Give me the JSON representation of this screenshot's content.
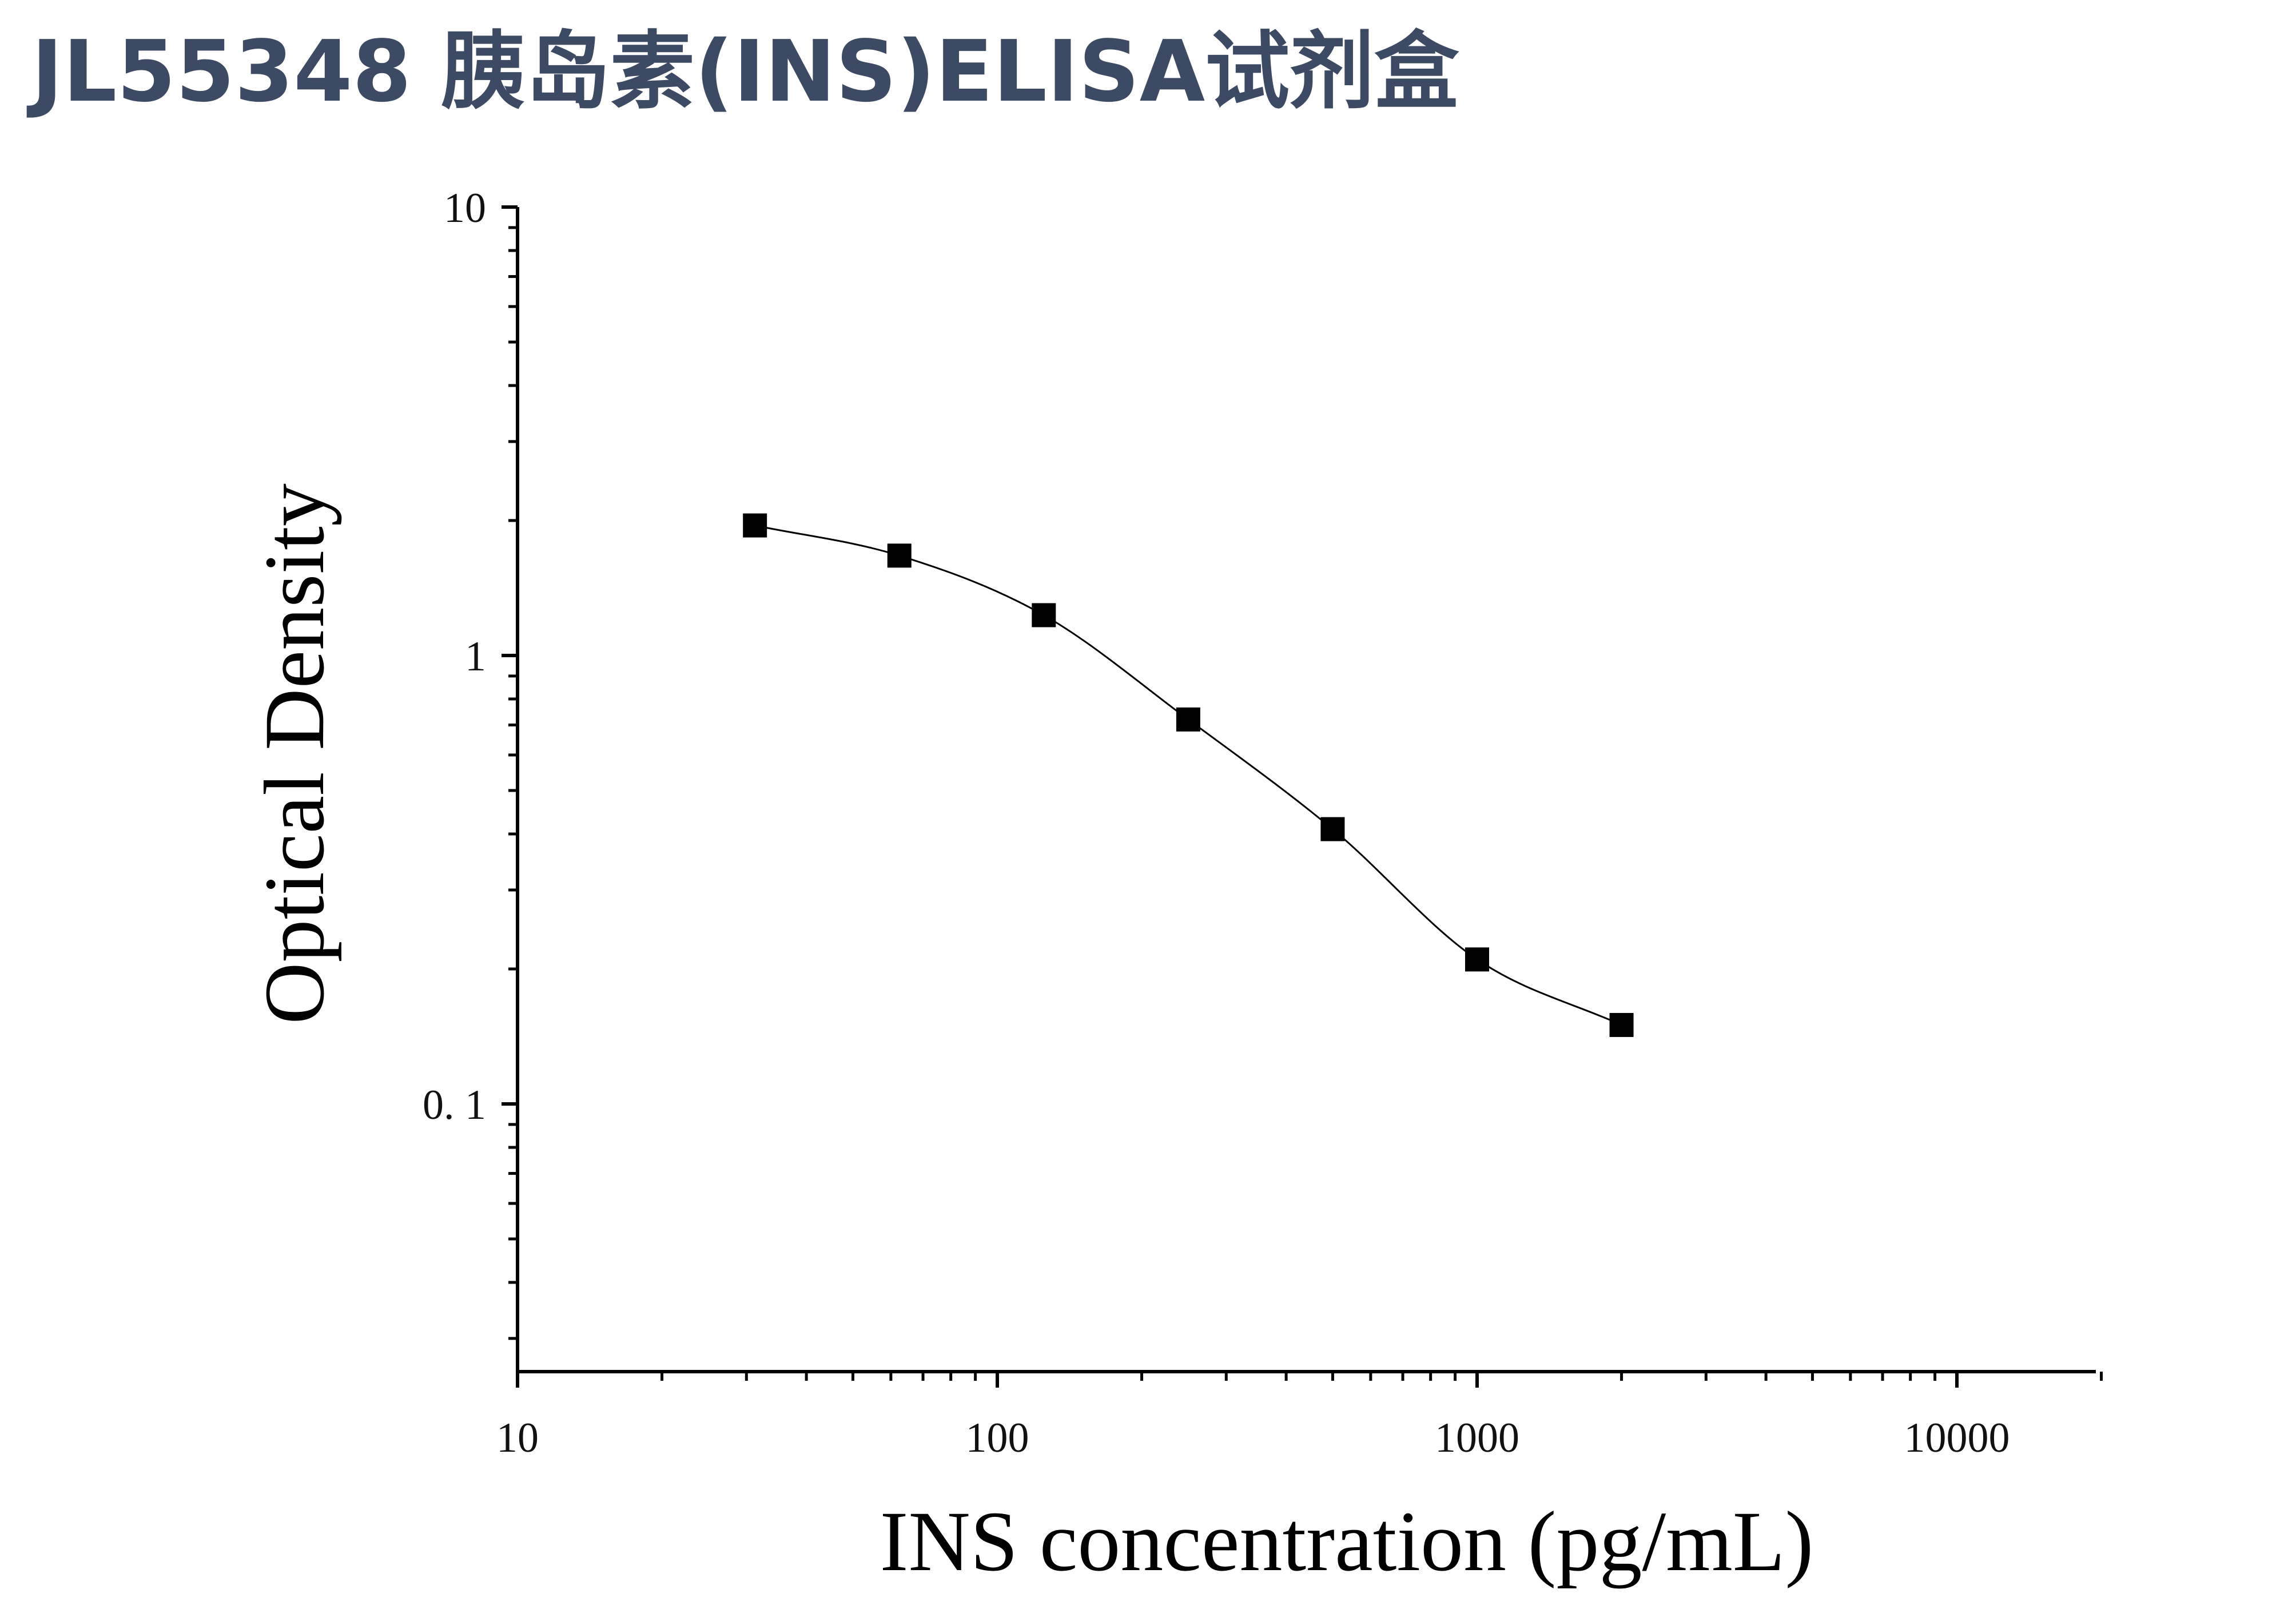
{
  "page": {
    "title": "JL55348 胰岛素(INS)ELISA试剂盒"
  },
  "chart_data": {
    "type": "scatter",
    "title": "",
    "xlabel": "INS concentration (pg/mL)",
    "ylabel": "Optical Density",
    "x_scale": "log",
    "y_scale": "log",
    "xlim": [
      10,
      20000
    ],
    "ylim": [
      0.025,
      10
    ],
    "x_ticks": [
      {
        "value": 10,
        "label": "10"
      },
      {
        "value": 100,
        "label": "100"
      },
      {
        "value": 1000,
        "label": "1000"
      },
      {
        "value": 10000,
        "label": "10000"
      }
    ],
    "y_ticks": [
      {
        "value": 0.1,
        "label": "0. 1"
      },
      {
        "value": 1,
        "label": "1"
      },
      {
        "value": 10,
        "label": "10"
      }
    ],
    "grid": false,
    "legend": "none",
    "series": [
      {
        "marker": "square",
        "color": "#000000",
        "fit_line": true,
        "points": [
          {
            "x": 31.25,
            "y": 1.95
          },
          {
            "x": 62.5,
            "y": 1.67
          },
          {
            "x": 125,
            "y": 1.23
          },
          {
            "x": 250,
            "y": 0.72
          },
          {
            "x": 500,
            "y": 0.41
          },
          {
            "x": 1000,
            "y": 0.21
          },
          {
            "x": 2000,
            "y": 0.15
          }
        ]
      }
    ]
  }
}
